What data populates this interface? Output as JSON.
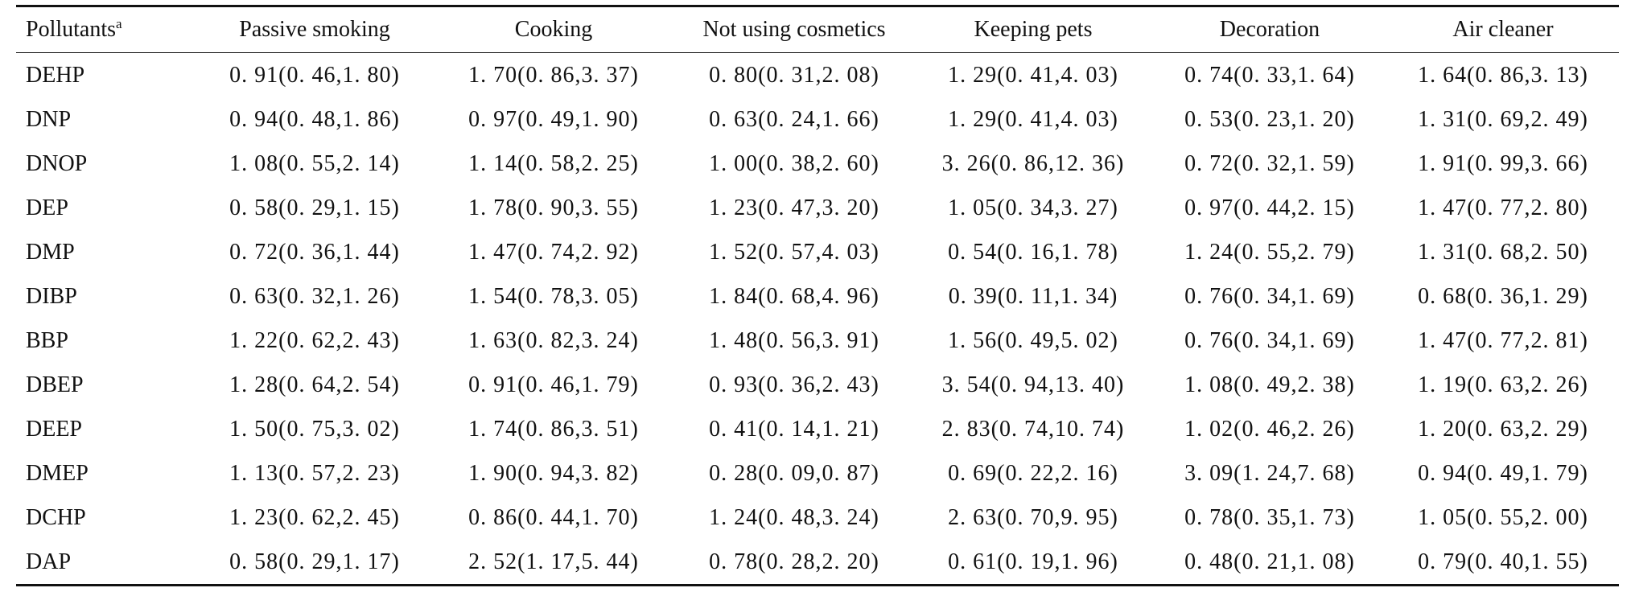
{
  "table": {
    "header": {
      "pollutants_label": "Pollutants",
      "pollutants_superscript": "a",
      "columns": [
        "Passive smoking",
        "Cooking",
        "Not using cosmetics",
        "Keeping pets",
        "Decoration",
        "Air cleaner"
      ]
    },
    "rows": [
      {
        "name": "DEHP",
        "values": [
          "0. 91(0. 46,1. 80)",
          "1. 70(0. 86,3. 37)",
          "0. 80(0. 31,2. 08)",
          "1. 29(0. 41,4. 03)",
          "0. 74(0. 33,1. 64)",
          "1. 64(0. 86,3. 13)"
        ]
      },
      {
        "name": "DNP",
        "values": [
          "0. 94(0. 48,1. 86)",
          "0. 97(0. 49,1. 90)",
          "0. 63(0. 24,1. 66)",
          "1. 29(0. 41,4. 03)",
          "0. 53(0. 23,1. 20)",
          "1. 31(0. 69,2. 49)"
        ]
      },
      {
        "name": "DNOP",
        "values": [
          "1. 08(0. 55,2. 14)",
          "1. 14(0. 58,2. 25)",
          "1. 00(0. 38,2. 60)",
          "3. 26(0. 86,12. 36)",
          "0. 72(0. 32,1. 59)",
          "1. 91(0. 99,3. 66)"
        ]
      },
      {
        "name": "DEP",
        "values": [
          "0. 58(0. 29,1. 15)",
          "1. 78(0. 90,3. 55)",
          "1. 23(0. 47,3. 20)",
          "1. 05(0. 34,3. 27)",
          "0. 97(0. 44,2. 15)",
          "1. 47(0. 77,2. 80)"
        ]
      },
      {
        "name": "DMP",
        "values": [
          "0. 72(0. 36,1. 44)",
          "1. 47(0. 74,2. 92)",
          "1. 52(0. 57,4. 03)",
          "0. 54(0. 16,1. 78)",
          "1. 24(0. 55,2. 79)",
          "1. 31(0. 68,2. 50)"
        ]
      },
      {
        "name": "DIBP",
        "values": [
          "0. 63(0. 32,1. 26)",
          "1. 54(0. 78,3. 05)",
          "1. 84(0. 68,4. 96)",
          "0. 39(0. 11,1. 34)",
          "0. 76(0. 34,1. 69)",
          "0. 68(0. 36,1. 29)"
        ]
      },
      {
        "name": "BBP",
        "values": [
          "1. 22(0. 62,2. 43)",
          "1. 63(0. 82,3. 24)",
          "1. 48(0. 56,3. 91)",
          "1. 56(0. 49,5. 02)",
          "0. 76(0. 34,1. 69)",
          "1. 47(0. 77,2. 81)"
        ]
      },
      {
        "name": "DBEP",
        "values": [
          "1. 28(0. 64,2. 54)",
          "0. 91(0. 46,1. 79)",
          "0. 93(0. 36,2. 43)",
          "3. 54(0. 94,13. 40)",
          "1. 08(0. 49,2. 38)",
          "1. 19(0. 63,2. 26)"
        ]
      },
      {
        "name": "DEEP",
        "values": [
          "1. 50(0. 75,3. 02)",
          "1. 74(0. 86,3. 51)",
          "0. 41(0. 14,1. 21)",
          "2. 83(0. 74,10. 74)",
          "1. 02(0. 46,2. 26)",
          "1. 20(0. 63,2. 29)"
        ]
      },
      {
        "name": "DMEP",
        "values": [
          "1. 13(0. 57,2. 23)",
          "1. 90(0. 94,3. 82)",
          "0. 28(0. 09,0. 87)",
          "0. 69(0. 22,2. 16)",
          "3. 09(1. 24,7. 68)",
          "0. 94(0. 49,1. 79)"
        ]
      },
      {
        "name": "DCHP",
        "values": [
          "1. 23(0. 62,2. 45)",
          "0. 86(0. 44,1. 70)",
          "1. 24(0. 48,3. 24)",
          "2. 63(0. 70,9. 95)",
          "0. 78(0. 35,1. 73)",
          "1. 05(0. 55,2. 00)"
        ]
      },
      {
        "name": "DAP",
        "values": [
          "0. 58(0. 29,1. 17)",
          "2. 52(1. 17,5. 44)",
          "0. 78(0. 28,2. 20)",
          "0. 61(0. 19,1. 96)",
          "0. 48(0. 21,1. 08)",
          "0. 79(0. 40,1. 55)"
        ]
      }
    ]
  }
}
